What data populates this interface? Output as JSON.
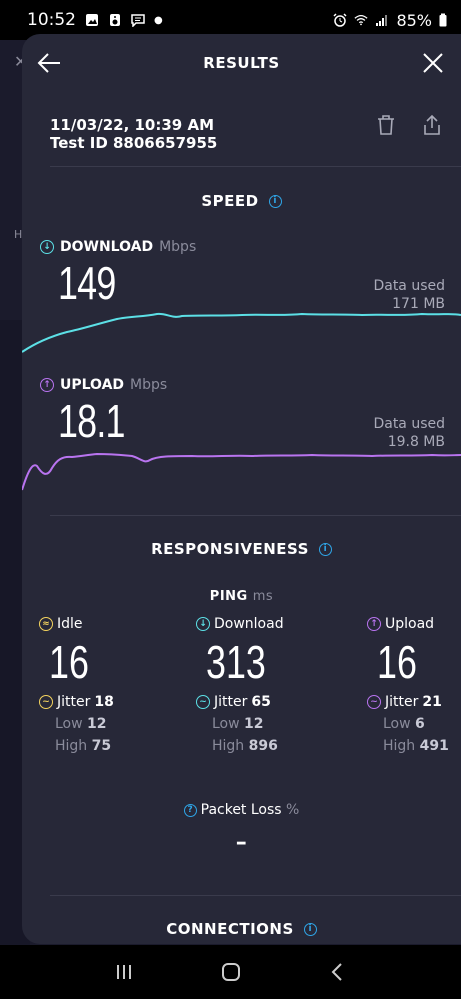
{
  "status_bar": {
    "time": "10:52",
    "battery": "85%"
  },
  "header": {
    "title": "RESULTS"
  },
  "test": {
    "datetime": "11/03/22, 10:39 AM",
    "test_id": "Test ID 8806657955"
  },
  "speed": {
    "title": "SPEED",
    "download": {
      "label": "DOWNLOAD",
      "unit": "Mbps",
      "value": "149",
      "data_used_label": "Data used",
      "data_used": "171 MB",
      "color": "#5ce0e6"
    },
    "upload": {
      "label": "UPLOAD",
      "unit": "Mbps",
      "value": "18.1",
      "data_used_label": "Data used",
      "data_used": "19.8 MB",
      "color": "#b974f0"
    }
  },
  "responsiveness": {
    "title": "RESPONSIVENESS",
    "ping_label": "PING",
    "ping_unit": "ms",
    "columns": [
      {
        "label": "Idle",
        "value": "16",
        "jitter_label": "Jitter",
        "jitter": "18",
        "low_label": "Low",
        "low": "12",
        "high_label": "High",
        "high": "75",
        "color": "#f4d35e"
      },
      {
        "label": "Download",
        "value": "313",
        "jitter_label": "Jitter",
        "jitter": "65",
        "low_label": "Low",
        "low": "12",
        "high_label": "High",
        "high": "896",
        "color": "#5ce0e6"
      },
      {
        "label": "Upload",
        "value": "16",
        "jitter_label": "Jitter",
        "jitter": "21",
        "low_label": "Low",
        "low": "6",
        "high_label": "High",
        "high": "491",
        "color": "#b974f0"
      }
    ],
    "packet_loss_label": "Packet Loss",
    "packet_loss_unit": "%",
    "packet_loss_value": "–"
  },
  "connections": {
    "title": "CONNECTIONS"
  },
  "colors": {
    "sheet_bg": "#272838",
    "accent_info": "#2fa6e8"
  }
}
